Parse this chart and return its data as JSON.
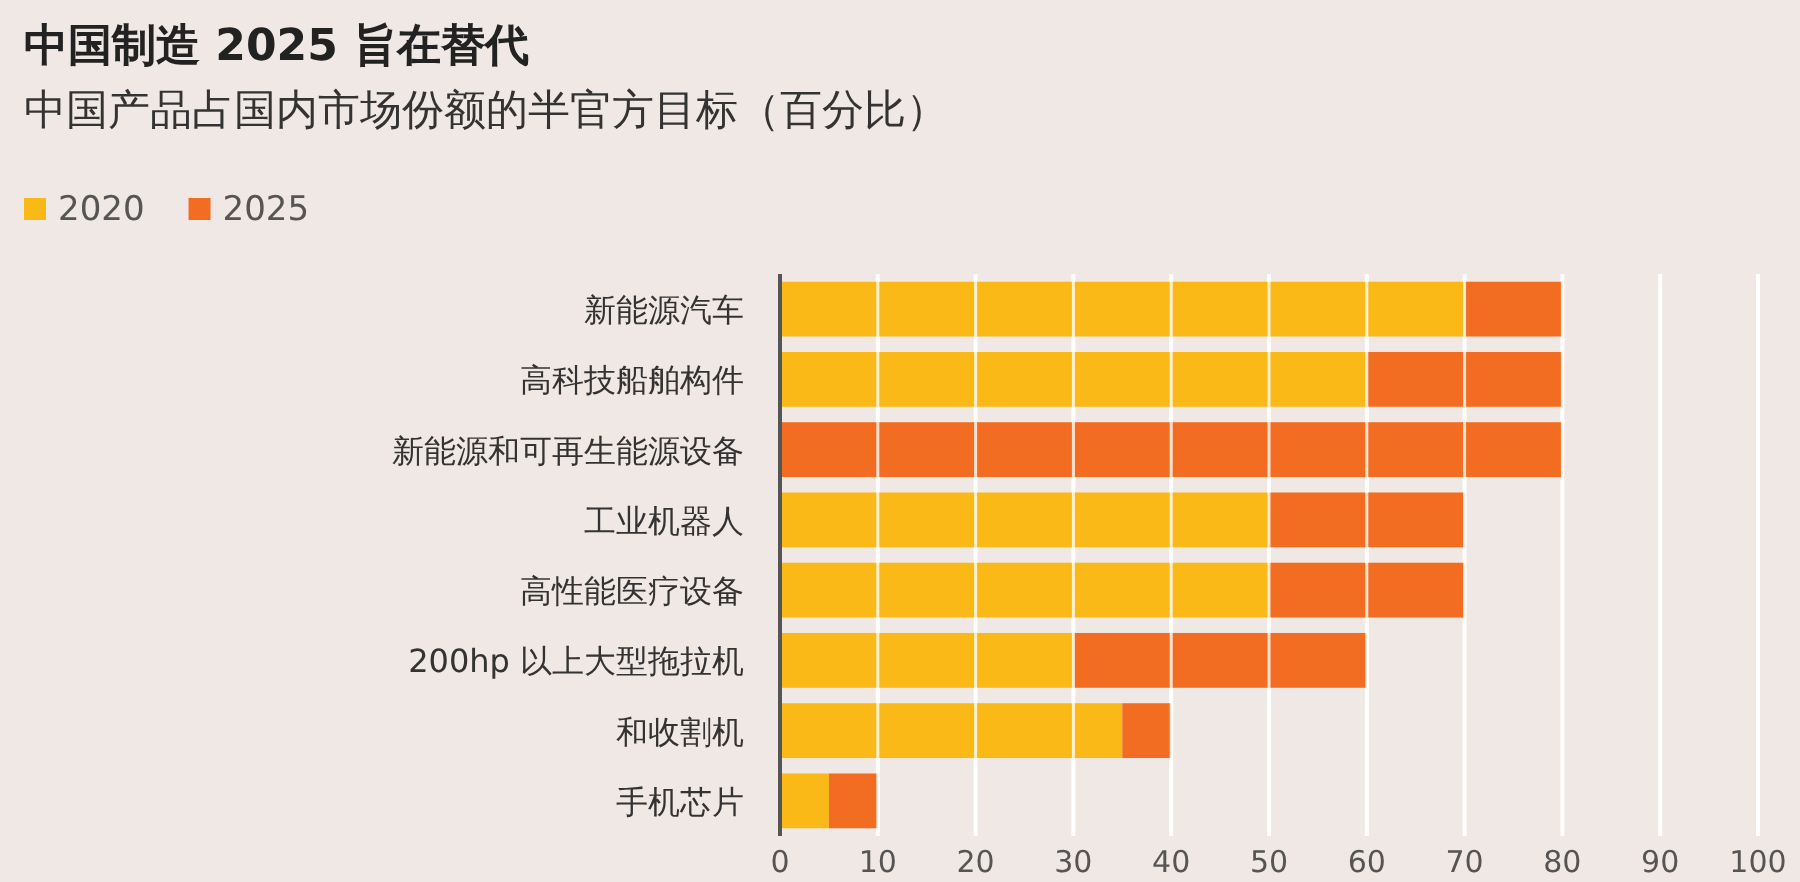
{
  "chart_data": {
    "type": "bar",
    "orientation": "horizontal",
    "stacked": true,
    "title": "中国制造 2025 旨在替代",
    "subtitle": "中国产品占国内市场份额的半官方目标（百分比）",
    "categories": [
      "新能源汽车",
      "高科技船舶构件",
      "新能源和可再生能源设备",
      "工业机器人",
      "高性能医疗设备",
      "200hp 以上大型拖拉机",
      "和收割机",
      "手机芯片"
    ],
    "series": [
      {
        "name": "2020",
        "color": "#fbb917",
        "values": [
          70,
          60,
          0,
          50,
          50,
          30,
          35,
          5
        ]
      },
      {
        "name": "2025",
        "color": "#f26d21",
        "values": [
          10,
          20,
          80,
          20,
          20,
          30,
          5,
          5
        ]
      }
    ],
    "xlim": [
      0,
      100
    ],
    "xticks": [
      0,
      10,
      20,
      30,
      40,
      50,
      60,
      70,
      80,
      90,
      100
    ],
    "grid": "x",
    "legend": "top left"
  }
}
